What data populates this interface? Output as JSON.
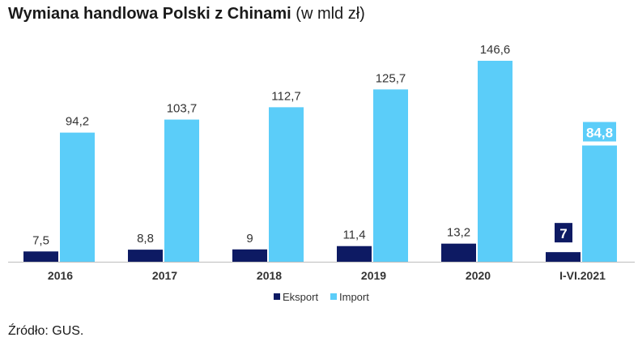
{
  "title": {
    "main": "Wymiana handlowa Polski z Chinami",
    "unit": "(w mld zł)"
  },
  "source": "Źródło: GUS.",
  "colors": {
    "export": "#0d1a63",
    "import": "#5bcdf9",
    "axis": "#bdbdbd",
    "label": "#333333"
  },
  "chart_data": {
    "type": "bar",
    "categories": [
      "2016",
      "2017",
      "2018",
      "2019",
      "2020",
      "I-VI.2021"
    ],
    "series": [
      {
        "name": "Eksport",
        "values": [
          7.5,
          8.8,
          9,
          11.4,
          13.2,
          7
        ],
        "labels": [
          "7,5",
          "8,8",
          "9",
          "11,4",
          "13,2",
          "7"
        ]
      },
      {
        "name": "Import",
        "values": [
          94.2,
          103.7,
          112.7,
          125.7,
          146.6,
          84.8
        ],
        "labels": [
          "94,2",
          "103,7",
          "112,7",
          "125,7",
          "146,6",
          "84,8"
        ]
      }
    ],
    "highlighted_category": "I-VI.2021",
    "ylim": [
      0,
      146.6
    ],
    "grid": false,
    "legend_position": "bottom-center"
  }
}
